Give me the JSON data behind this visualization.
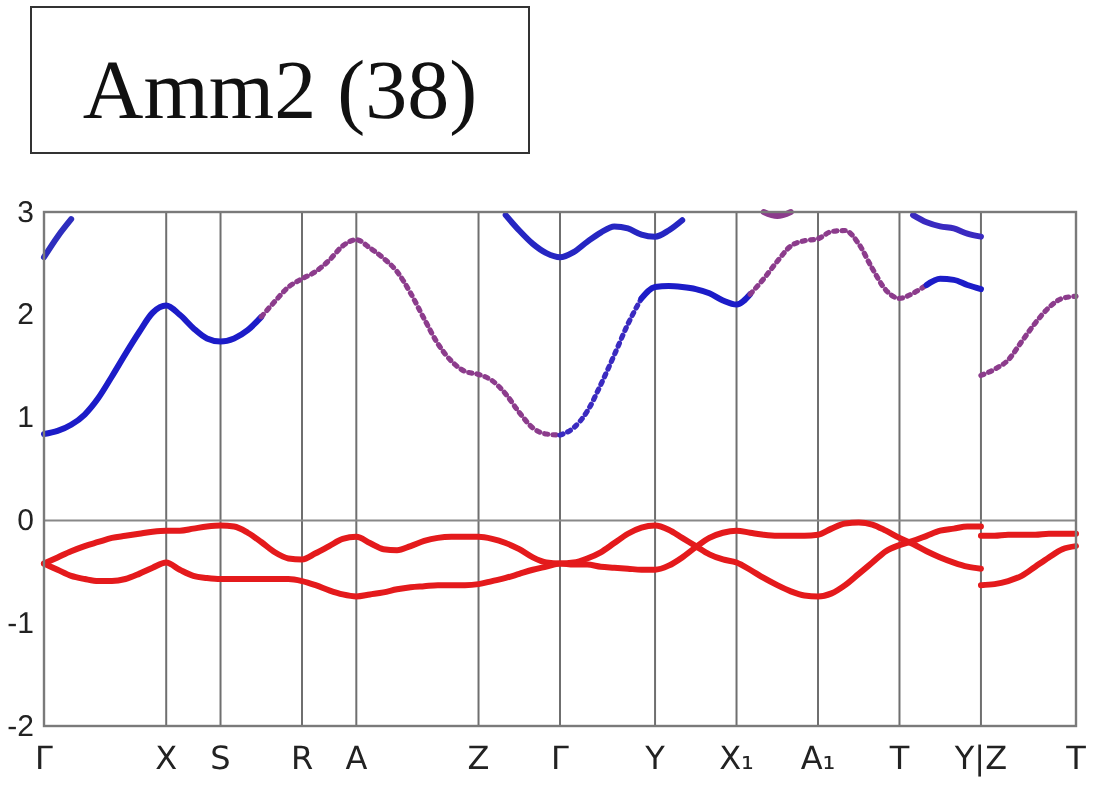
{
  "chart_data": {
    "type": "line",
    "title": "Amm2 (38)",
    "categories": [
      "Γ",
      null,
      null,
      null,
      null,
      null,
      null,
      null,
      null,
      "X",
      null,
      null,
      null,
      "S",
      null,
      null,
      null,
      null,
      null,
      "R",
      null,
      null,
      null,
      "A",
      null,
      null,
      null,
      null,
      null,
      null,
      null,
      null,
      "Z",
      null,
      null,
      null,
      null,
      null,
      "Γ",
      null,
      null,
      null,
      null,
      null,
      null,
      "Y",
      null,
      null,
      null,
      null,
      null,
      "X₁",
      null,
      null,
      null,
      null,
      null,
      "A₁",
      null,
      null,
      null,
      null,
      null,
      "T",
      null,
      null,
      null,
      null,
      null,
      "Y|Z",
      null,
      null,
      null,
      null,
      null,
      null,
      "T"
    ],
    "ylim": [
      -2,
      3
    ],
    "yticks": [
      -2,
      -1,
      0,
      1,
      2,
      3
    ],
    "grid": "x",
    "ref_lines": [
      {
        "axis": "y",
        "value": 0,
        "color": "#888888"
      }
    ],
    "series": [
      {
        "color": "#1c1cc8",
        "line_style": "solid",
        "values": [
          0.84,
          0.87,
          0.93,
          1.03,
          1.19,
          1.4,
          1.62,
          1.83,
          2.02,
          2.09,
          2.0,
          1.87,
          1.77,
          1.74,
          1.77,
          1.85,
          1.98,
          null,
          null,
          null,
          null,
          null,
          null,
          null,
          null,
          null,
          null,
          null,
          null,
          null,
          null,
          null,
          null,
          null,
          null,
          null,
          null,
          null,
          null,
          null,
          null,
          null,
          null,
          null,
          null,
          null,
          null,
          null,
          null,
          null,
          null,
          null,
          null,
          null,
          null,
          null,
          null,
          null,
          null,
          null,
          null,
          null,
          null,
          null,
          null,
          null,
          null,
          null,
          null,
          null,
          null,
          null,
          null,
          null,
          null,
          null,
          null
        ]
      },
      {
        "color": "#8c3c8c",
        "line_style": "dotted",
        "values": [
          null,
          null,
          null,
          null,
          null,
          null,
          null,
          null,
          null,
          null,
          null,
          null,
          null,
          null,
          null,
          null,
          1.98,
          2.13,
          2.27,
          2.35,
          2.42,
          2.53,
          2.67,
          2.73,
          2.65,
          2.55,
          2.42,
          2.21,
          1.96,
          1.72,
          1.55,
          1.45,
          1.42,
          1.36,
          1.23,
          1.05,
          0.9,
          0.84,
          0.83,
          null,
          null,
          null,
          null,
          null,
          null,
          null,
          null,
          null,
          null,
          null,
          null,
          null,
          null,
          null,
          null,
          null,
          null,
          null,
          null,
          null,
          null,
          null,
          null,
          null,
          null,
          null,
          null,
          null,
          null,
          null,
          null,
          null,
          null,
          null,
          null,
          null,
          null
        ]
      },
      {
        "color": "#3a2ac0",
        "line_style": "dotted",
        "values": [
          null,
          null,
          null,
          null,
          null,
          null,
          null,
          null,
          null,
          null,
          null,
          null,
          null,
          null,
          null,
          null,
          null,
          null,
          null,
          null,
          null,
          null,
          null,
          null,
          null,
          null,
          null,
          null,
          null,
          null,
          null,
          null,
          null,
          null,
          null,
          null,
          null,
          null,
          0.83,
          0.9,
          1.06,
          1.32,
          1.61,
          1.91,
          2.16,
          null,
          null,
          null,
          null,
          null,
          null,
          null,
          null,
          null,
          null,
          null,
          null,
          null,
          null,
          null,
          null,
          null,
          null,
          null,
          null,
          null,
          null,
          null,
          null,
          null,
          null,
          null,
          null,
          null,
          null,
          null,
          null
        ]
      },
      {
        "color": "#1c1cc8",
        "line_style": "solid",
        "values": [
          null,
          null,
          null,
          null,
          null,
          null,
          null,
          null,
          null,
          null,
          null,
          null,
          null,
          null,
          null,
          null,
          null,
          null,
          null,
          null,
          null,
          null,
          null,
          null,
          null,
          null,
          null,
          null,
          null,
          null,
          null,
          null,
          null,
          null,
          null,
          null,
          null,
          null,
          null,
          null,
          null,
          null,
          null,
          null,
          2.16,
          2.27,
          2.28,
          2.27,
          2.25,
          2.21,
          2.14,
          2.1,
          2.2,
          null,
          null,
          null,
          null,
          null,
          null,
          null,
          null,
          null,
          null,
          null,
          null,
          null,
          null,
          null,
          null,
          null,
          null,
          null,
          null,
          null,
          null,
          null,
          null
        ]
      },
      {
        "color": "#8c3c8c",
        "line_style": "dotted",
        "values": [
          null,
          null,
          null,
          null,
          null,
          null,
          null,
          null,
          null,
          null,
          null,
          null,
          null,
          null,
          null,
          null,
          null,
          null,
          null,
          null,
          null,
          null,
          null,
          null,
          null,
          null,
          null,
          null,
          null,
          null,
          null,
          null,
          null,
          null,
          null,
          null,
          null,
          null,
          null,
          null,
          null,
          null,
          null,
          null,
          null,
          null,
          null,
          null,
          null,
          null,
          null,
          null,
          2.2,
          2.35,
          2.52,
          2.67,
          2.72,
          2.74,
          2.81,
          2.82,
          2.69,
          2.45,
          2.24,
          2.16,
          2.21,
          2.29,
          null,
          null,
          null,
          null,
          null,
          null,
          null,
          null,
          null,
          null,
          null
        ]
      },
      {
        "color": "#1c1cc8",
        "line_style": "solid",
        "values": [
          null,
          null,
          null,
          null,
          null,
          null,
          null,
          null,
          null,
          null,
          null,
          null,
          null,
          null,
          null,
          null,
          null,
          null,
          null,
          null,
          null,
          null,
          null,
          null,
          null,
          null,
          null,
          null,
          null,
          null,
          null,
          null,
          null,
          null,
          null,
          null,
          null,
          null,
          null,
          null,
          null,
          null,
          null,
          null,
          null,
          null,
          null,
          null,
          null,
          null,
          null,
          null,
          null,
          null,
          null,
          null,
          null,
          null,
          null,
          null,
          null,
          null,
          null,
          null,
          null,
          2.29,
          2.35,
          2.34,
          2.29,
          2.25,
          null,
          null,
          null,
          null,
          null,
          null,
          null
        ]
      },
      {
        "color": "#8c3c8c",
        "line_style": "dotted",
        "values": [
          null,
          null,
          null,
          null,
          null,
          null,
          null,
          null,
          null,
          null,
          null,
          null,
          null,
          null,
          null,
          null,
          null,
          null,
          null,
          null,
          null,
          null,
          null,
          null,
          null,
          null,
          null,
          null,
          null,
          null,
          null,
          null,
          null,
          null,
          null,
          null,
          null,
          null,
          null,
          null,
          null,
          null,
          null,
          null,
          null,
          null,
          null,
          null,
          null,
          null,
          null,
          null,
          null,
          null,
          null,
          null,
          null,
          null,
          null,
          null,
          null,
          null,
          null,
          null,
          null,
          null,
          null,
          null,
          null,
          1.41,
          1.47,
          1.56,
          1.74,
          1.92,
          2.07,
          2.16,
          2.18
        ]
      },
      {
        "color": "#2e2ebe",
        "line_style": "solid",
        "values": [
          2.56,
          2.76,
          2.93,
          null,
          null,
          null,
          null,
          null,
          null,
          null,
          null,
          null,
          null,
          null,
          null,
          null,
          null,
          null,
          null,
          null,
          null,
          null,
          null,
          null,
          null,
          null,
          null,
          null,
          null,
          null,
          null,
          null,
          null,
          null,
          null,
          null,
          null,
          null,
          null,
          null,
          null,
          null,
          null,
          null,
          null,
          null,
          null,
          null,
          null,
          null,
          null,
          null,
          null,
          null,
          null,
          null,
          null,
          null,
          null,
          null,
          null,
          null,
          null,
          null,
          null,
          null,
          null,
          null,
          null,
          null,
          null,
          null,
          null,
          null,
          null,
          null,
          null
        ]
      },
      {
        "color": "#2626c2",
        "line_style": "solid",
        "values": [
          null,
          null,
          null,
          null,
          null,
          null,
          null,
          null,
          null,
          null,
          null,
          null,
          null,
          null,
          null,
          null,
          null,
          null,
          null,
          null,
          null,
          null,
          null,
          null,
          null,
          null,
          null,
          null,
          null,
          null,
          null,
          null,
          null,
          null,
          2.97,
          2.82,
          2.69,
          2.6,
          2.56,
          2.61,
          2.71,
          2.8,
          2.86,
          2.84,
          2.78,
          2.76,
          2.82,
          2.92,
          null,
          null,
          null,
          null,
          null,
          null,
          null,
          null,
          null,
          null,
          null,
          null,
          null,
          null,
          null,
          null,
          null,
          null,
          null,
          null,
          null,
          null,
          null,
          null,
          null,
          null,
          null,
          null,
          null
        ]
      },
      {
        "color": "#8c3c8c",
        "line_style": "solid",
        "values": [
          null,
          null,
          null,
          null,
          null,
          null,
          null,
          null,
          null,
          null,
          null,
          null,
          null,
          null,
          null,
          null,
          null,
          null,
          null,
          null,
          null,
          null,
          null,
          null,
          null,
          null,
          null,
          null,
          null,
          null,
          null,
          null,
          null,
          null,
          null,
          null,
          null,
          null,
          null,
          null,
          null,
          null,
          null,
          null,
          null,
          null,
          null,
          null,
          null,
          null,
          null,
          null,
          null,
          3.0,
          2.96,
          3.0,
          null,
          null,
          null,
          null,
          null,
          null,
          null,
          null,
          null,
          null,
          null,
          null,
          null,
          null,
          null,
          null,
          null,
          null,
          null,
          null,
          null
        ]
      },
      {
        "color": "#3a2ac0",
        "line_style": "solid",
        "values": [
          null,
          null,
          null,
          null,
          null,
          null,
          null,
          null,
          null,
          null,
          null,
          null,
          null,
          null,
          null,
          null,
          null,
          null,
          null,
          null,
          null,
          null,
          null,
          null,
          null,
          null,
          null,
          null,
          null,
          null,
          null,
          null,
          null,
          null,
          null,
          null,
          null,
          null,
          null,
          null,
          null,
          null,
          null,
          null,
          null,
          null,
          null,
          null,
          null,
          null,
          null,
          null,
          null,
          null,
          null,
          null,
          null,
          null,
          null,
          null,
          null,
          null,
          null,
          null,
          2.97,
          2.9,
          2.86,
          2.84,
          2.79,
          2.76,
          null,
          null,
          null,
          null,
          null,
          null,
          null
        ]
      },
      {
        "color": "#e41a1c",
        "line_style": "solid",
        "values": [
          -0.42,
          -0.36,
          -0.3,
          -0.25,
          -0.21,
          -0.17,
          -0.15,
          -0.13,
          -0.11,
          -0.1,
          -0.1,
          -0.08,
          -0.06,
          -0.05,
          -0.06,
          -0.12,
          -0.21,
          -0.31,
          -0.37,
          -0.38,
          -0.32,
          -0.25,
          -0.18,
          -0.16,
          -0.22,
          -0.28,
          -0.29,
          -0.25,
          -0.2,
          -0.17,
          -0.16,
          -0.16,
          -0.16,
          -0.18,
          -0.22,
          -0.28,
          -0.36,
          -0.41,
          -0.42,
          -0.41,
          -0.37,
          -0.31,
          -0.22,
          -0.13,
          -0.07,
          -0.05,
          -0.09,
          -0.17,
          -0.25,
          -0.33,
          -0.38,
          -0.41,
          -0.48,
          -0.56,
          -0.63,
          -0.69,
          -0.73,
          -0.74,
          -0.71,
          -0.63,
          -0.52,
          -0.41,
          -0.3,
          -0.24,
          -0.2,
          -0.15,
          -0.1,
          -0.08,
          -0.06,
          -0.06,
          null,
          null,
          null,
          null,
          null,
          null,
          null
        ]
      },
      {
        "color": "#e41a1c",
        "line_style": "solid",
        "values": [
          -0.42,
          -0.48,
          -0.54,
          -0.57,
          -0.59,
          -0.59,
          -0.57,
          -0.52,
          -0.46,
          -0.41,
          -0.48,
          -0.54,
          -0.56,
          -0.57,
          -0.57,
          -0.57,
          -0.57,
          -0.57,
          -0.57,
          -0.59,
          -0.63,
          -0.68,
          -0.72,
          -0.74,
          -0.72,
          -0.7,
          -0.67,
          -0.65,
          -0.64,
          -0.63,
          -0.63,
          -0.63,
          -0.62,
          -0.59,
          -0.56,
          -0.52,
          -0.48,
          -0.45,
          -0.42,
          -0.43,
          -0.43,
          -0.45,
          -0.46,
          -0.47,
          -0.48,
          -0.48,
          -0.44,
          -0.36,
          -0.26,
          -0.17,
          -0.12,
          -0.1,
          -0.12,
          -0.14,
          -0.15,
          -0.15,
          -0.15,
          -0.14,
          -0.08,
          -0.03,
          -0.02,
          -0.04,
          -0.1,
          -0.17,
          -0.23,
          -0.3,
          -0.36,
          -0.41,
          -0.45,
          -0.47,
          null,
          null,
          null,
          null,
          null,
          null,
          null
        ]
      },
      {
        "color": "#e41a1c",
        "line_style": "solid",
        "values": [
          null,
          null,
          null,
          null,
          null,
          null,
          null,
          null,
          null,
          null,
          null,
          null,
          null,
          null,
          null,
          null,
          null,
          null,
          null,
          null,
          null,
          null,
          null,
          null,
          null,
          null,
          null,
          null,
          null,
          null,
          null,
          null,
          null,
          null,
          null,
          null,
          null,
          null,
          null,
          null,
          null,
          null,
          null,
          null,
          null,
          null,
          null,
          null,
          null,
          null,
          null,
          null,
          null,
          null,
          null,
          null,
          null,
          null,
          null,
          null,
          null,
          null,
          null,
          null,
          null,
          null,
          null,
          null,
          null,
          -0.15,
          -0.15,
          -0.14,
          -0.14,
          -0.14,
          -0.13,
          -0.13,
          -0.13
        ]
      },
      {
        "color": "#e41a1c",
        "line_style": "solid",
        "values": [
          null,
          null,
          null,
          null,
          null,
          null,
          null,
          null,
          null,
          null,
          null,
          null,
          null,
          null,
          null,
          null,
          null,
          null,
          null,
          null,
          null,
          null,
          null,
          null,
          null,
          null,
          null,
          null,
          null,
          null,
          null,
          null,
          null,
          null,
          null,
          null,
          null,
          null,
          null,
          null,
          null,
          null,
          null,
          null,
          null,
          null,
          null,
          null,
          null,
          null,
          null,
          null,
          null,
          null,
          null,
          null,
          null,
          null,
          null,
          null,
          null,
          null,
          null,
          null,
          null,
          null,
          null,
          null,
          null,
          -0.63,
          -0.62,
          -0.59,
          -0.54,
          -0.45,
          -0.36,
          -0.28,
          -0.25
        ]
      }
    ]
  }
}
